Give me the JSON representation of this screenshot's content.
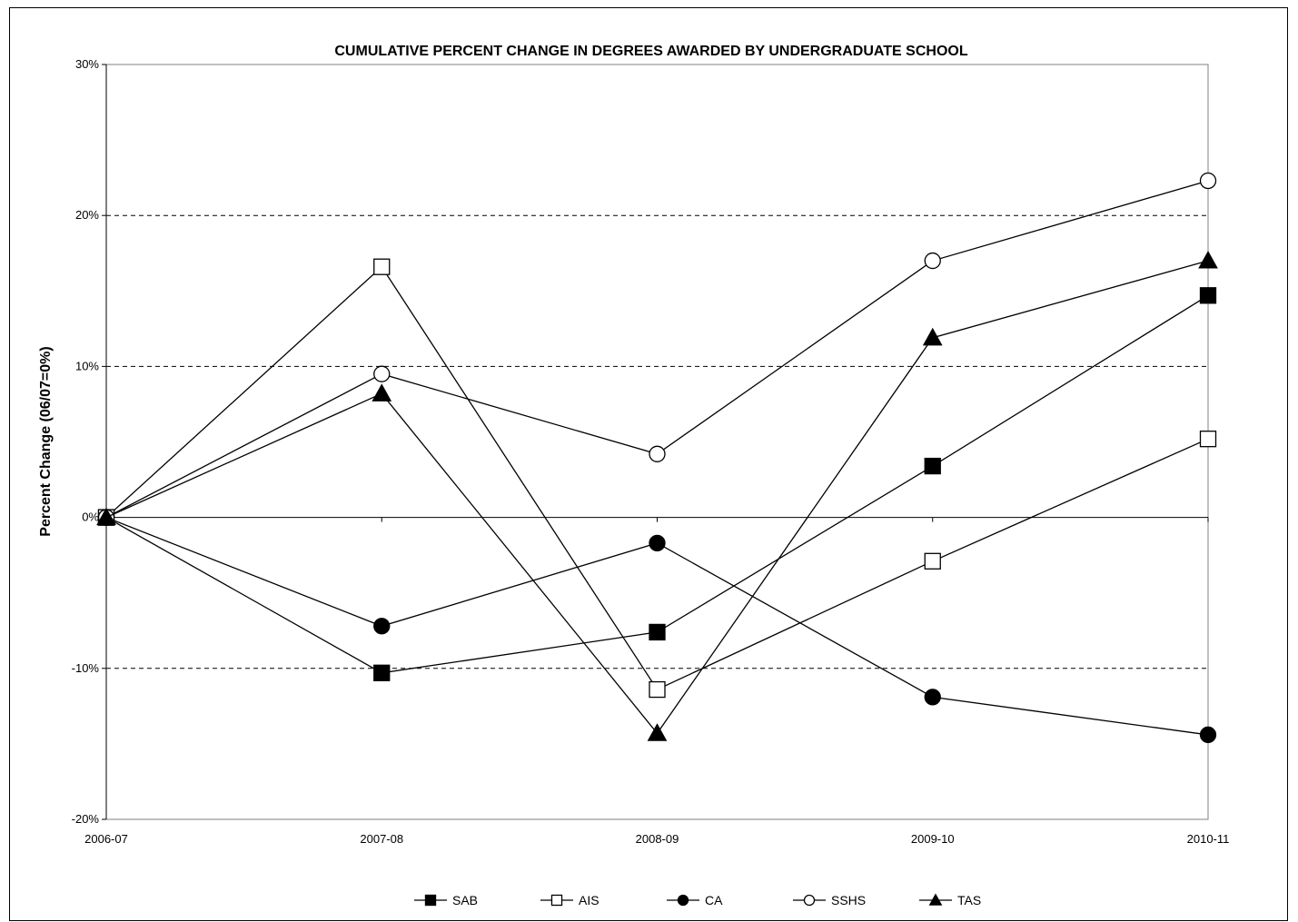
{
  "chart_data": {
    "type": "line",
    "title": "CUMULATIVE PERCENT CHANGE IN DEGREES AWARDED BY UNDERGRADUATE SCHOOL",
    "xlabel": "",
    "ylabel": "Percent Change (06/07=0%)",
    "categories": [
      "2006-07",
      "2007-08",
      "2008-09",
      "2009-10",
      "2010-11"
    ],
    "ylim": [
      -20,
      30
    ],
    "yticks": [
      -20,
      -10,
      0,
      10,
      20,
      30
    ],
    "ytick_labels": [
      "-20%",
      "-10%",
      "0%",
      "10%",
      "20%",
      "30%"
    ],
    "grid": "dashed horizontal at -10%, 10%, 20%",
    "legend_position": "bottom",
    "series": [
      {
        "name": "SAB",
        "marker": "square-filled",
        "values": [
          0,
          -10.3,
          -7.6,
          3.4,
          14.7
        ]
      },
      {
        "name": "AIS",
        "marker": "square-open",
        "values": [
          0,
          16.6,
          -11.4,
          -2.9,
          5.2
        ]
      },
      {
        "name": "CA",
        "marker": "circle-filled",
        "values": [
          0,
          -7.2,
          -1.7,
          -11.9,
          -14.4
        ]
      },
      {
        "name": "SSHS",
        "marker": "circle-open",
        "values": [
          0,
          9.5,
          4.2,
          17.0,
          22.3
        ]
      },
      {
        "name": "TAS",
        "marker": "triangle-filled",
        "values": [
          0,
          8.2,
          -14.3,
          11.9,
          17.0
        ]
      }
    ]
  }
}
